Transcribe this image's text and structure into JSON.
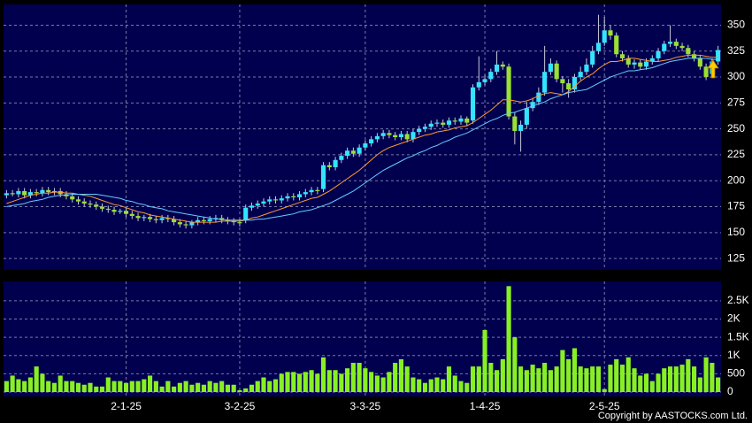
{
  "chart_data": [
    {
      "type": "candlestick",
      "open": [
        186,
        188,
        187,
        190,
        186,
        189,
        188,
        191,
        189,
        190,
        187,
        185,
        182,
        180,
        178,
        177,
        175,
        173,
        172,
        170,
        171,
        168,
        166,
        164,
        165,
        163,
        162,
        164,
        163,
        160,
        158,
        157,
        160,
        162,
        161,
        163,
        164,
        162,
        161,
        160,
        162,
        174,
        176,
        178,
        180,
        182,
        181,
        183,
        185,
        184,
        187,
        189,
        191,
        192,
        215,
        213,
        220,
        224,
        229,
        226,
        232,
        236,
        240,
        243,
        246,
        244,
        242,
        245,
        240,
        247,
        250,
        252,
        255,
        256,
        254,
        258,
        257,
        260,
        258,
        290,
        295,
        298,
        305,
        312,
        310,
        262,
        248,
        254,
        270,
        276,
        285,
        305,
        313,
        298,
        294,
        288,
        300,
        305,
        312,
        325,
        333,
        345,
        340,
        322,
        318,
        312,
        314,
        310,
        315,
        318,
        325,
        332,
        334,
        330,
        328,
        322,
        318,
        310,
        303,
        315
      ],
      "high": [
        191,
        191,
        193,
        193,
        192,
        192,
        194,
        194,
        193,
        193,
        190,
        188,
        185,
        183,
        181,
        180,
        178,
        176,
        175,
        173,
        174,
        171,
        169,
        167,
        168,
        166,
        167,
        167,
        166,
        163,
        161,
        162,
        165,
        165,
        166,
        167,
        167,
        165,
        164,
        163,
        177,
        179,
        181,
        183,
        185,
        185,
        186,
        188,
        188,
        190,
        192,
        194,
        194,
        218,
        218,
        223,
        227,
        232,
        232,
        235,
        239,
        243,
        246,
        249,
        249,
        247,
        248,
        248,
        250,
        253,
        255,
        258,
        259,
        259,
        261,
        261,
        263,
        262,
        293,
        320,
        302,
        308,
        325,
        315,
        313,
        266,
        258,
        276,
        280,
        290,
        330,
        318,
        316,
        301,
        298,
        303,
        310,
        318,
        330,
        360,
        358,
        350,
        343,
        325,
        321,
        317,
        317,
        318,
        321,
        328,
        335,
        350,
        337,
        333,
        331,
        325,
        321,
        313,
        318,
        330
      ],
      "low": [
        183,
        185,
        184,
        183,
        183,
        185,
        185,
        186,
        186,
        184,
        182,
        179,
        177,
        175,
        174,
        172,
        170,
        169,
        167,
        168,
        165,
        163,
        161,
        161,
        160,
        159,
        159,
        160,
        157,
        155,
        154,
        154,
        157,
        158,
        158,
        160,
        159,
        158,
        157,
        156,
        159,
        171,
        173,
        175,
        177,
        178,
        178,
        180,
        181,
        181,
        184,
        186,
        187,
        189,
        210,
        210,
        217,
        221,
        223,
        223,
        229,
        233,
        237,
        240,
        241,
        239,
        239,
        237,
        237,
        244,
        247,
        249,
        252,
        251,
        251,
        254,
        254,
        253,
        255,
        287,
        292,
        295,
        302,
        307,
        259,
        235,
        228,
        250,
        267,
        273,
        282,
        302,
        295,
        285,
        280,
        285,
        297,
        302,
        309,
        322,
        330,
        336,
        319,
        315,
        309,
        308,
        307,
        307,
        312,
        315,
        322,
        329,
        327,
        325,
        319,
        315,
        307,
        297,
        300,
        312
      ],
      "close": [
        188,
        187,
        190,
        186,
        189,
        188,
        191,
        189,
        190,
        187,
        185,
        182,
        180,
        178,
        177,
        175,
        173,
        172,
        170,
        171,
        168,
        166,
        164,
        165,
        163,
        162,
        164,
        163,
        160,
        158,
        157,
        160,
        162,
        161,
        163,
        164,
        162,
        161,
        160,
        159,
        174,
        176,
        178,
        180,
        182,
        181,
        183,
        185,
        184,
        187,
        189,
        191,
        190,
        215,
        213,
        220,
        224,
        229,
        226,
        232,
        236,
        240,
        243,
        246,
        244,
        242,
        245,
        240,
        247,
        250,
        252,
        255,
        256,
        254,
        258,
        257,
        260,
        256,
        290,
        295,
        298,
        305,
        312,
        310,
        262,
        248,
        254,
        270,
        276,
        285,
        305,
        313,
        298,
        294,
        288,
        300,
        305,
        312,
        325,
        333,
        345,
        340,
        322,
        318,
        312,
        314,
        310,
        315,
        318,
        325,
        332,
        334,
        330,
        328,
        322,
        318,
        310,
        300,
        315,
        326
      ],
      "up_color": "#33e4ff",
      "down_color": "#9ae033",
      "lines": [
        {
          "color": "#ff9933",
          "values": [
            178,
            180,
            182,
            184,
            186,
            187,
            188,
            188,
            189,
            189,
            188,
            188,
            187,
            186,
            185,
            183,
            181,
            179,
            177,
            176,
            174,
            172,
            170,
            169,
            167,
            166,
            165,
            164,
            163,
            162,
            161,
            160,
            160,
            160,
            160,
            160,
            161,
            161,
            161,
            161,
            162,
            164,
            165,
            167,
            169,
            171,
            173,
            175,
            177,
            179,
            181,
            183,
            184,
            187,
            190,
            194,
            198,
            202,
            206,
            210,
            215,
            220,
            225,
            229,
            232,
            234,
            236,
            238,
            240,
            242,
            244,
            245,
            247,
            248,
            249,
            251,
            252,
            253,
            256,
            260,
            264,
            268,
            273,
            278,
            278,
            277,
            276,
            277,
            279,
            282,
            284,
            285,
            284,
            283,
            286,
            291,
            296,
            300,
            303,
            308,
            312,
            315,
            315,
            316,
            318,
            318,
            317,
            316,
            315,
            315,
            316,
            317,
            319,
            320,
            321,
            321,
            321,
            320,
            319,
            319
          ]
        },
        {
          "color": "#66ccff",
          "values": [
            175,
            176,
            177,
            178,
            180,
            181,
            182,
            184,
            185,
            186,
            186,
            187,
            187,
            187,
            187,
            187,
            186,
            185,
            184,
            183,
            181,
            180,
            178,
            177,
            175,
            174,
            173,
            171,
            170,
            169,
            168,
            167,
            166,
            165,
            164,
            163,
            163,
            162,
            162,
            162,
            162,
            162,
            163,
            163,
            164,
            165,
            166,
            167,
            168,
            170,
            171,
            172,
            174,
            176,
            178,
            181,
            184,
            187,
            190,
            194,
            198,
            202,
            206,
            210,
            213,
            216,
            219,
            222,
            224,
            227,
            229,
            232,
            234,
            237,
            239,
            242,
            244,
            246,
            249,
            252,
            255,
            258,
            260,
            263,
            265,
            266,
            268,
            270,
            272,
            274,
            276,
            279,
            281,
            283,
            285,
            286,
            287,
            288,
            291,
            294,
            297,
            300,
            302,
            304,
            306,
            306,
            307,
            308,
            309,
            311,
            313,
            315,
            316,
            317,
            318,
            318,
            318,
            318,
            317,
            317
          ]
        }
      ],
      "ylim": [
        114,
        370
      ],
      "yticks": [
        125,
        150,
        175,
        200,
        225,
        250,
        275,
        300,
        325,
        350
      ],
      "grid": true
    },
    {
      "type": "bar",
      "categories": [
        null,
        null,
        null,
        null,
        null,
        null,
        null,
        null,
        null,
        null,
        null,
        null,
        null,
        null,
        null,
        null,
        null,
        null,
        null,
        null,
        "2-1-25",
        null,
        null,
        null,
        null,
        null,
        null,
        null,
        null,
        null,
        null,
        null,
        null,
        null,
        null,
        null,
        null,
        null,
        null,
        "3-2-25",
        null,
        null,
        null,
        null,
        null,
        null,
        null,
        null,
        null,
        null,
        null,
        null,
        null,
        null,
        null,
        null,
        null,
        null,
        null,
        null,
        "3-3-25",
        null,
        null,
        null,
        null,
        null,
        null,
        null,
        null,
        null,
        null,
        null,
        null,
        null,
        null,
        null,
        null,
        null,
        null,
        null,
        "1-4-25",
        null,
        null,
        null,
        null,
        null,
        null,
        null,
        null,
        null,
        null,
        null,
        null,
        null,
        null,
        null,
        null,
        null,
        null,
        null,
        "2-5-25",
        null,
        null,
        null,
        null,
        null,
        null,
        null,
        null,
        null,
        null,
        null,
        null,
        null,
        null,
        null,
        null,
        null,
        null,
        null
      ],
      "values": [
        300,
        450,
        350,
        300,
        400,
        700,
        500,
        300,
        250,
        450,
        300,
        300,
        250,
        200,
        250,
        150,
        150,
        400,
        300,
        300,
        250,
        300,
        300,
        350,
        450,
        300,
        150,
        300,
        150,
        250,
        300,
        200,
        250,
        200,
        300,
        250,
        300,
        200,
        200,
        50,
        100,
        200,
        300,
        400,
        300,
        350,
        500,
        550,
        550,
        500,
        550,
        600,
        500,
        950,
        600,
        600,
        500,
        650,
        800,
        800,
        650,
        550,
        450,
        400,
        550,
        800,
        900,
        700,
        400,
        350,
        250,
        350,
        400,
        350,
        700,
        450,
        300,
        250,
        700,
        700,
        1700,
        800,
        600,
        900,
        2900,
        1500,
        700,
        600,
        750,
        650,
        800,
        600,
        700,
        1150,
        900,
        1200,
        700,
        650,
        700,
        700,
        80,
        750,
        900,
        750,
        950,
        650,
        450,
        500,
        300,
        500,
        650,
        700,
        700,
        750,
        900,
        700,
        400,
        950,
        800,
        400
      ],
      "color": "#88f022",
      "ylim": [
        -121,
        3030
      ],
      "yticks": [
        0,
        500,
        {
          "value": 1000,
          "label": "1K"
        },
        {
          "value": 1500,
          "label": "1.5K"
        },
        {
          "value": 2000,
          "label": "2K"
        },
        {
          "value": 2500,
          "label": "2.5K"
        }
      ],
      "grid": true
    }
  ],
  "copyright": "Copyright by AASTOCKS.com Ltd."
}
